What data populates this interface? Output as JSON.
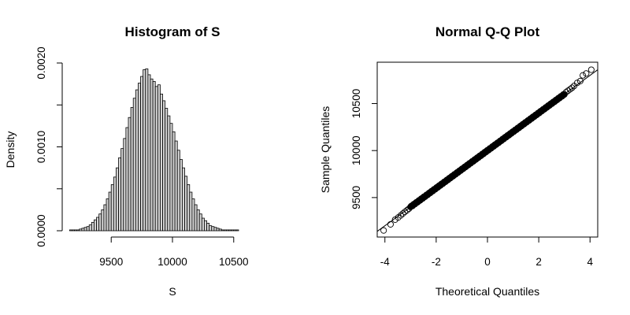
{
  "chart_data": [
    {
      "type": "bar",
      "title": "Histogram of S",
      "xlabel": "S",
      "ylabel": "Density",
      "xlim": [
        9100,
        10900
      ],
      "ylim": [
        0,
        0.002
      ],
      "xticks": [
        "9500",
        "10000",
        "10500"
      ],
      "yticks": [
        "0.0000",
        "0.0010",
        "0.0020"
      ],
      "bin_start": 9160,
      "bin_width": 20,
      "density": [
        1e-05,
        1e-05,
        1e-05,
        1e-05,
        2e-05,
        3e-05,
        4e-05,
        5e-05,
        7e-05,
        0.0001,
        0.00013,
        0.00016,
        0.0002,
        0.00025,
        0.00031,
        0.00038,
        0.00046,
        0.00055,
        0.00064,
        0.00075,
        0.00087,
        0.00098,
        0.0011,
        0.00123,
        0.00135,
        0.00147,
        0.00158,
        0.00168,
        0.00176,
        0.00184,
        0.00192,
        0.00193,
        0.00186,
        0.00181,
        0.00178,
        0.00172,
        0.00174,
        0.00163,
        0.00155,
        0.00146,
        0.00137,
        0.00128,
        0.00118,
        0.00107,
        0.00096,
        0.00085,
        0.00075,
        0.00065,
        0.00055,
        0.00046,
        0.00038,
        0.00031,
        0.00025,
        0.0002,
        0.00015,
        0.00012,
        9e-05,
        6e-05,
        5e-05,
        4e-05,
        3e-05,
        2e-05,
        1e-05,
        1e-05,
        1e-05,
        1e-05,
        1e-05,
        1e-05,
        1e-05
      ]
    },
    {
      "type": "scatter",
      "title": "Normal Q-Q Plot",
      "xlabel": "Theoretical Quantiles",
      "ylabel": "Sample Quantiles",
      "xlim": [
        -4.3,
        4.3
      ],
      "ylim": [
        9080,
        10940
      ],
      "xticks": [
        "-4",
        "-2",
        "0",
        "2",
        "4"
      ],
      "yticks": [
        "9500",
        "10000",
        "10500"
      ],
      "reference_line": {
        "intercept": 10000,
        "slope": 200
      },
      "tail_points": [
        {
          "x": -4.05,
          "y": 9150
        },
        {
          "x": -3.78,
          "y": 9215
        },
        {
          "x": -3.6,
          "y": 9265
        },
        {
          "x": -3.48,
          "y": 9288
        },
        {
          "x": -3.38,
          "y": 9310
        },
        {
          "x": -3.3,
          "y": 9330
        },
        {
          "x": -3.22,
          "y": 9348
        },
        {
          "x": -3.14,
          "y": 9365
        },
        {
          "x": -3.06,
          "y": 9382
        },
        {
          "x": 3.06,
          "y": 10620
        },
        {
          "x": 3.14,
          "y": 10636
        },
        {
          "x": 3.22,
          "y": 10652
        },
        {
          "x": 3.3,
          "y": 10668
        },
        {
          "x": 3.38,
          "y": 10688
        },
        {
          "x": 3.5,
          "y": 10720
        },
        {
          "x": 3.62,
          "y": 10740
        },
        {
          "x": 3.72,
          "y": 10800
        },
        {
          "x": 3.85,
          "y": 10820
        },
        {
          "x": 4.05,
          "y": 10860
        }
      ],
      "body_range": [
        -3.0,
        3.0
      ]
    }
  ]
}
